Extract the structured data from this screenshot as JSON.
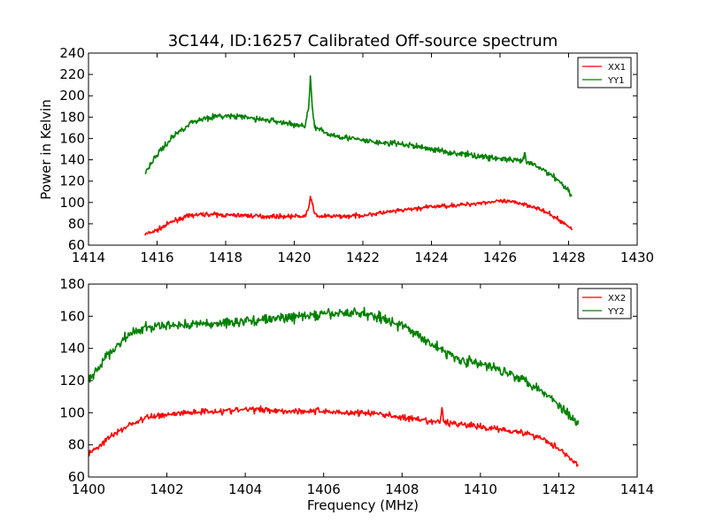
{
  "figure": {
    "title": "3C144, ID:16257 Calibrated Off-source spectrum",
    "xlabel": "Frequency (MHz)",
    "ylabel": "Power in Kelvin"
  },
  "chart_data": [
    {
      "type": "line",
      "title": "3C144, ID:16257 Calibrated Off-source spectrum",
      "xlabel": "",
      "ylabel": "Power in Kelvin",
      "xlim": [
        1414,
        1430
      ],
      "ylim": [
        60,
        240
      ],
      "xticks": [
        "1414",
        "1416",
        "1418",
        "1420",
        "1422",
        "1424",
        "1426",
        "1428",
        "1430"
      ],
      "yticks": [
        "60",
        "80",
        "100",
        "120",
        "140",
        "160",
        "180",
        "200",
        "220",
        "240"
      ],
      "grid": false,
      "legend_position": "top-right",
      "series": [
        {
          "name": "XX1",
          "color": "#ff0000",
          "noise": 1.0,
          "x": [
            1415.65,
            1416.0,
            1416.5,
            1417.0,
            1417.5,
            1418.0,
            1418.5,
            1419.0,
            1419.5,
            1420.0,
            1420.3,
            1420.42,
            1420.47,
            1420.52,
            1420.58,
            1420.7,
            1421.0,
            1421.5,
            1422.0,
            1422.5,
            1423.0,
            1423.5,
            1424.0,
            1424.5,
            1425.0,
            1425.5,
            1426.0,
            1426.5,
            1427.0,
            1427.5,
            1427.8,
            1428.1
          ],
          "y": [
            70,
            74,
            83,
            88,
            89,
            88,
            88,
            87,
            87,
            87,
            87,
            93,
            107,
            100,
            90,
            87,
            87,
            87,
            88,
            90,
            92,
            94,
            96,
            97,
            98,
            100,
            101,
            100,
            96,
            88,
            82,
            75
          ]
        },
        {
          "name": "YY1",
          "color": "#008000",
          "noise": 1.4,
          "x": [
            1415.65,
            1416.0,
            1416.5,
            1417.0,
            1417.5,
            1418.0,
            1418.5,
            1419.0,
            1419.5,
            1420.0,
            1420.3,
            1420.42,
            1420.47,
            1420.52,
            1420.6,
            1420.8,
            1421.0,
            1421.5,
            1422.0,
            1422.5,
            1423.0,
            1423.5,
            1424.0,
            1424.5,
            1425.0,
            1425.5,
            1426.0,
            1426.5,
            1426.68,
            1426.72,
            1426.76,
            1427.0,
            1427.5,
            1427.8,
            1428.1
          ],
          "y": [
            128,
            145,
            163,
            175,
            180,
            181,
            180,
            178,
            176,
            173,
            171,
            190,
            218,
            190,
            170,
            167,
            164,
            161,
            158,
            156,
            155,
            153,
            150,
            147,
            145,
            143,
            141,
            139,
            139,
            147,
            138,
            135,
            126,
            118,
            107
          ]
        }
      ]
    },
    {
      "type": "line",
      "title": "",
      "xlabel": "Frequency (MHz)",
      "ylabel": "",
      "xlim": [
        1400,
        1414
      ],
      "ylim": [
        60,
        180
      ],
      "xticks": [
        "1400",
        "1402",
        "1404",
        "1406",
        "1408",
        "1410",
        "1412",
        "1414"
      ],
      "yticks": [
        "60",
        "80",
        "100",
        "120",
        "140",
        "160",
        "180"
      ],
      "grid": false,
      "legend_position": "top-right",
      "series": [
        {
          "name": "XX2",
          "color": "#ff0000",
          "noise": 1.0,
          "x": [
            1400.0,
            1400.5,
            1401.0,
            1401.5,
            1402.0,
            1402.5,
            1403.0,
            1403.5,
            1404.0,
            1404.5,
            1405.0,
            1405.5,
            1406.0,
            1406.5,
            1407.0,
            1407.5,
            1408.0,
            1408.5,
            1408.98,
            1409.02,
            1409.06,
            1409.5,
            1410.0,
            1410.5,
            1411.0,
            1411.5,
            1412.0,
            1412.5
          ],
          "y": [
            74,
            84,
            92,
            97,
            99,
            100,
            101,
            101,
            102,
            102,
            101,
            101,
            101,
            100,
            100,
            99,
            97,
            95,
            94,
            104,
            94,
            93,
            91,
            90,
            88,
            85,
            78,
            67
          ]
        },
        {
          "name": "YY2",
          "color": "#008000",
          "noise": 1.6,
          "x": [
            1400.0,
            1400.5,
            1401.0,
            1401.5,
            1402.0,
            1402.5,
            1403.0,
            1403.5,
            1404.0,
            1404.5,
            1405.0,
            1405.5,
            1406.0,
            1406.5,
            1407.0,
            1407.5,
            1408.0,
            1408.5,
            1409.0,
            1409.5,
            1410.0,
            1410.5,
            1411.0,
            1411.5,
            1412.0,
            1412.5
          ],
          "y": [
            120,
            136,
            148,
            153,
            154,
            155,
            155,
            156,
            157,
            158,
            159,
            160,
            161,
            162,
            162,
            159,
            154,
            147,
            139,
            133,
            130,
            127,
            122,
            115,
            105,
            93
          ]
        }
      ]
    }
  ]
}
